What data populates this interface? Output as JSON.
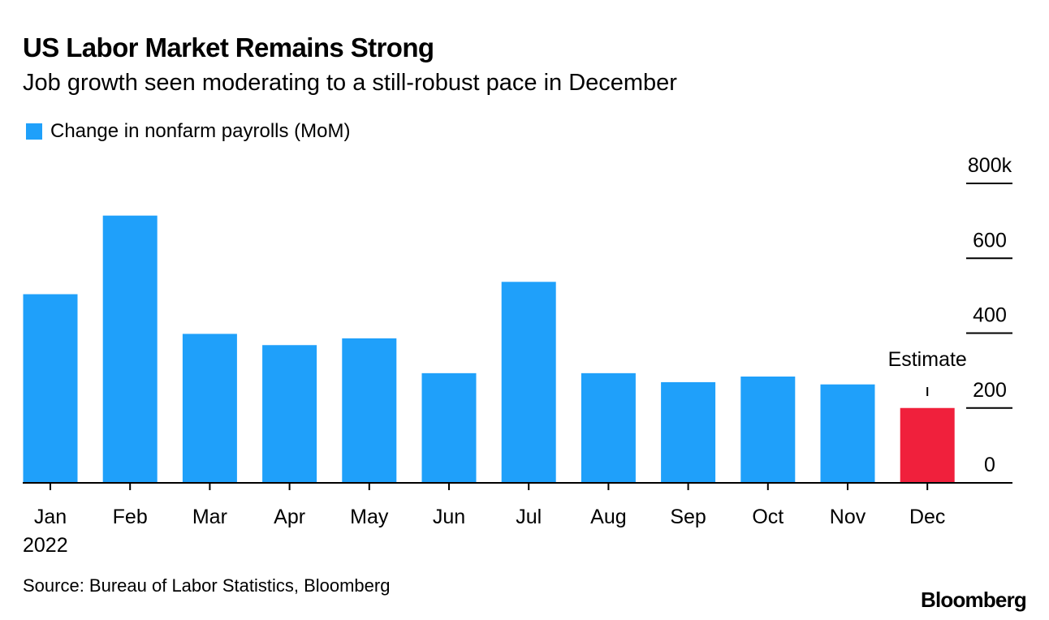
{
  "header": {
    "title": "US Labor Market Remains Strong",
    "subtitle": "Job growth seen moderating to a still-robust pace in December"
  },
  "footer": {
    "source": "Source: Bureau of Labor Statistics, Bloomberg",
    "brand": "Bloomberg"
  },
  "colors": {
    "bar": "#1fa0fa",
    "highlight": "#f0203c",
    "axis": "#000000"
  },
  "chart_data": {
    "type": "bar",
    "title": "US Labor Market Remains Strong",
    "subtitle": "Job growth seen moderating to a still-robust pace in December",
    "categories": [
      "Jan",
      "Feb",
      "Mar",
      "Apr",
      "May",
      "Jun",
      "Jul",
      "Aug",
      "Sep",
      "Oct",
      "Nov",
      "Dec"
    ],
    "year_label": "2022",
    "series": [
      {
        "name": "Change in nonfarm payrolls (MoM)",
        "values": [
          504,
          714,
          398,
          368,
          386,
          293,
          537,
          293,
          269,
          284,
          263,
          200
        ]
      }
    ],
    "highlight_index": 11,
    "annotation": "Estimate",
    "yticks": [
      {
        "value": 0,
        "label": "0"
      },
      {
        "value": 200,
        "label": "200"
      },
      {
        "value": 400,
        "label": "400"
      },
      {
        "value": 600,
        "label": "600"
      },
      {
        "value": 800,
        "label": "800k"
      }
    ],
    "ylim": [
      0,
      800
    ],
    "xlabel": "",
    "ylabel": "",
    "legend_position": "top-left",
    "grid": false
  }
}
